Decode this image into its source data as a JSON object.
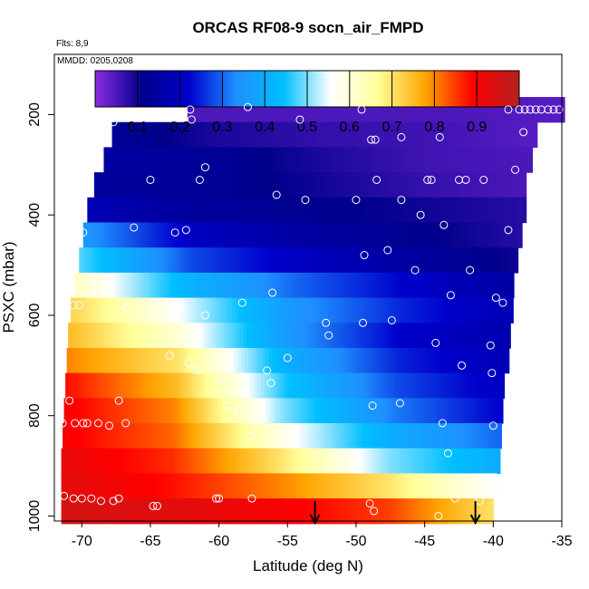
{
  "chart_data": {
    "type": "heatmap",
    "title": "ORCAS RF08-9 socn_air_FMPD",
    "subtitle_flights": "Flts: 8,9",
    "subtitle_dates": "MMDD: 0205,0208",
    "xlabel": "Latitude (deg N)",
    "ylabel": "PSXC (mbar)",
    "xlim": [
      -72,
      -35
    ],
    "ylim": [
      1010,
      80
    ],
    "x_ticks": [
      -70,
      -65,
      -60,
      -55,
      -50,
      -45,
      -40,
      -35
    ],
    "x_tick_labels": [
      "-70",
      "-65",
      "-60",
      "-55",
      "-50",
      "-45",
      "-40",
      "-35"
    ],
    "y_ticks": [
      200,
      400,
      600,
      800,
      1000
    ],
    "y_tick_labels": [
      "200",
      "400",
      "600",
      "800",
      "1000"
    ],
    "colorbar": {
      "range": [
        0,
        1
      ],
      "ticks": [
        0.1,
        0.2,
        0.3,
        0.4,
        0.5,
        0.6,
        0.7,
        0.8,
        0.9
      ],
      "tick_labels": [
        "0.1",
        "0.2",
        "0.3",
        "0.4",
        "0.5",
        "0.6",
        "0.7",
        "0.8",
        "0.9"
      ],
      "colors": [
        "#8a2be2",
        "#00008b",
        "#0000cd",
        "#1e90ff",
        "#00bfff",
        "#ffffff",
        "#ffff99",
        "#ffa500",
        "#ff0000",
        "#b22222"
      ]
    },
    "pressure_bands": [
      {
        "p": 190,
        "lat_min": -62.3,
        "lat_max": -35.0,
        "values": [
          0.05,
          0.05,
          0.05,
          0.05,
          0.04
        ]
      },
      {
        "p": 240,
        "lat_min": -67.8,
        "lat_max": -37.0,
        "values": [
          0.13,
          0.09,
          0.07,
          0.06,
          0.04
        ]
      },
      {
        "p": 290,
        "lat_min": -68.4,
        "lat_max": -37.4,
        "values": [
          0.15,
          0.13,
          0.09,
          0.06,
          0.05
        ]
      },
      {
        "p": 340,
        "lat_min": -69.1,
        "lat_max": -37.6,
        "values": [
          0.14,
          0.13,
          0.1,
          0.07,
          0.05
        ]
      },
      {
        "p": 390,
        "lat_min": -69.6,
        "lat_max": -37.8,
        "values": [
          0.18,
          0.14,
          0.12,
          0.1,
          0.08
        ]
      },
      {
        "p": 440,
        "lat_min": -69.9,
        "lat_max": -38.1,
        "values": [
          0.35,
          0.2,
          0.15,
          0.12,
          0.08
        ]
      },
      {
        "p": 490,
        "lat_min": -70.2,
        "lat_max": -38.3,
        "values": [
          0.48,
          0.28,
          0.2,
          0.15,
          0.1
        ]
      },
      {
        "p": 540,
        "lat_min": -70.5,
        "lat_max": -38.5,
        "values": [
          0.62,
          0.42,
          0.3,
          0.22,
          0.15
        ]
      },
      {
        "p": 590,
        "lat_min": -70.8,
        "lat_max": -38.7,
        "values": [
          0.72,
          0.55,
          0.35,
          0.25,
          0.18
        ]
      },
      {
        "p": 640,
        "lat_min": -71.0,
        "lat_max": -38.9,
        "values": [
          0.75,
          0.6,
          0.35,
          0.22,
          0.17
        ]
      },
      {
        "p": 690,
        "lat_min": -71.1,
        "lat_max": -39.0,
        "values": [
          0.8,
          0.7,
          0.4,
          0.25,
          0.18
        ]
      },
      {
        "p": 740,
        "lat_min": -71.2,
        "lat_max": -39.2,
        "values": [
          0.88,
          0.75,
          0.45,
          0.28,
          0.2
        ]
      },
      {
        "p": 790,
        "lat_min": -71.3,
        "lat_max": -39.5,
        "values": [
          0.9,
          0.8,
          0.5,
          0.32,
          0.22
        ]
      },
      {
        "p": 840,
        "lat_min": -71.4,
        "lat_max": -39.6,
        "values": [
          0.9,
          0.82,
          0.58,
          0.4,
          0.3
        ]
      },
      {
        "p": 890,
        "lat_min": -71.5,
        "lat_max": -39.7,
        "values": [
          0.92,
          0.86,
          0.7,
          0.5,
          0.4
        ]
      },
      {
        "p": 940,
        "lat_min": -71.5,
        "lat_max": -39.8,
        "values": [
          0.93,
          0.88,
          0.8,
          0.7,
          0.55
        ]
      },
      {
        "p": 990,
        "lat_min": -71.5,
        "lat_max": -40.0,
        "values": [
          0.95,
          0.93,
          0.9,
          0.85,
          0.7
        ]
      }
    ],
    "sample_points": [
      [
        -71.4,
        815
      ],
      [
        -70.9,
        770
      ],
      [
        -70.5,
        815
      ],
      [
        -69.9,
        815
      ],
      [
        -69.6,
        815
      ],
      [
        -68.8,
        815
      ],
      [
        -68.0,
        820
      ],
      [
        -67.3,
        770
      ],
      [
        -66.8,
        815
      ],
      [
        -70.6,
        580
      ],
      [
        -70.2,
        580
      ],
      [
        -66.7,
        585
      ],
      [
        -62.8,
        585
      ],
      [
        -61.0,
        600
      ],
      [
        -58.3,
        575
      ],
      [
        -56.1,
        555
      ],
      [
        -63.6,
        680
      ],
      [
        -62.2,
        695
      ],
      [
        -60.6,
        685
      ],
      [
        -58.2,
        730
      ],
      [
        -56.5,
        710
      ],
      [
        -55.0,
        685
      ],
      [
        -56.2,
        735
      ],
      [
        -52.2,
        615
      ],
      [
        -52.0,
        640
      ],
      [
        -49.5,
        615
      ],
      [
        -47.4,
        610
      ],
      [
        -44.2,
        655
      ],
      [
        -42.3,
        700
      ],
      [
        -40.2,
        660
      ],
      [
        -40.1,
        715
      ],
      [
        -61.6,
        710
      ],
      [
        -60.0,
        730
      ],
      [
        -59.4,
        780
      ],
      [
        -58.6,
        790
      ],
      [
        -57.7,
        840
      ],
      [
        -57.3,
        815
      ],
      [
        -48.8,
        780
      ],
      [
        -46.8,
        775
      ],
      [
        -43.7,
        815
      ],
      [
        -40.0,
        820
      ],
      [
        -43.3,
        875
      ],
      [
        -69.9,
        435
      ],
      [
        -63.2,
        435
      ],
      [
        -62.4,
        430
      ],
      [
        -66.2,
        425
      ],
      [
        -65.0,
        330
      ],
      [
        -61.4,
        330
      ],
      [
        -61.0,
        305
      ],
      [
        -55.8,
        360
      ],
      [
        -53.7,
        370
      ],
      [
        -50.0,
        370
      ],
      [
        -48.5,
        330
      ],
      [
        -46.7,
        370
      ],
      [
        -45.3,
        400
      ],
      [
        -44.8,
        330
      ],
      [
        -44.5,
        330
      ],
      [
        -43.6,
        420
      ],
      [
        -42.5,
        330
      ],
      [
        -42.0,
        330
      ],
      [
        -40.7,
        330
      ],
      [
        -38.9,
        430
      ],
      [
        -38.4,
        310
      ],
      [
        -49.4,
        480
      ],
      [
        -47.7,
        470
      ],
      [
        -45.7,
        510
      ],
      [
        -43.1,
        560
      ],
      [
        -41.7,
        510
      ],
      [
        -39.8,
        565
      ],
      [
        -39.3,
        575
      ],
      [
        -48.9,
        250
      ],
      [
        -48.6,
        250
      ],
      [
        -46.7,
        245
      ],
      [
        -43.9,
        245
      ],
      [
        -49.6,
        190
      ],
      [
        -54.1,
        210
      ],
      [
        -57.9,
        185
      ],
      [
        -62.1,
        190
      ],
      [
        -62.0,
        210
      ],
      [
        -67.7,
        215
      ],
      [
        -68.2,
        255
      ],
      [
        -37.8,
        235
      ],
      [
        -38.9,
        190
      ],
      [
        -38.1,
        190
      ],
      [
        -37.7,
        190
      ],
      [
        -37.3,
        190
      ],
      [
        -36.9,
        190
      ],
      [
        -36.5,
        190
      ],
      [
        -36.0,
        190
      ],
      [
        -35.6,
        190
      ],
      [
        -35.2,
        190
      ],
      [
        -71.3,
        960
      ],
      [
        -70.6,
        965
      ],
      [
        -70.0,
        965
      ],
      [
        -69.3,
        965
      ],
      [
        -68.6,
        970
      ],
      [
        -67.7,
        970
      ],
      [
        -67.3,
        965
      ],
      [
        -64.8,
        980
      ],
      [
        -64.5,
        980
      ],
      [
        -60.2,
        965
      ],
      [
        -60.0,
        965
      ],
      [
        -57.6,
        965
      ],
      [
        -49.0,
        975
      ],
      [
        -48.7,
        990
      ],
      [
        -44.0,
        1000
      ],
      [
        -42.8,
        965
      ],
      [
        -41.0,
        970
      ]
    ],
    "arrows_lat": [
      -53.0,
      -41.3
    ]
  }
}
